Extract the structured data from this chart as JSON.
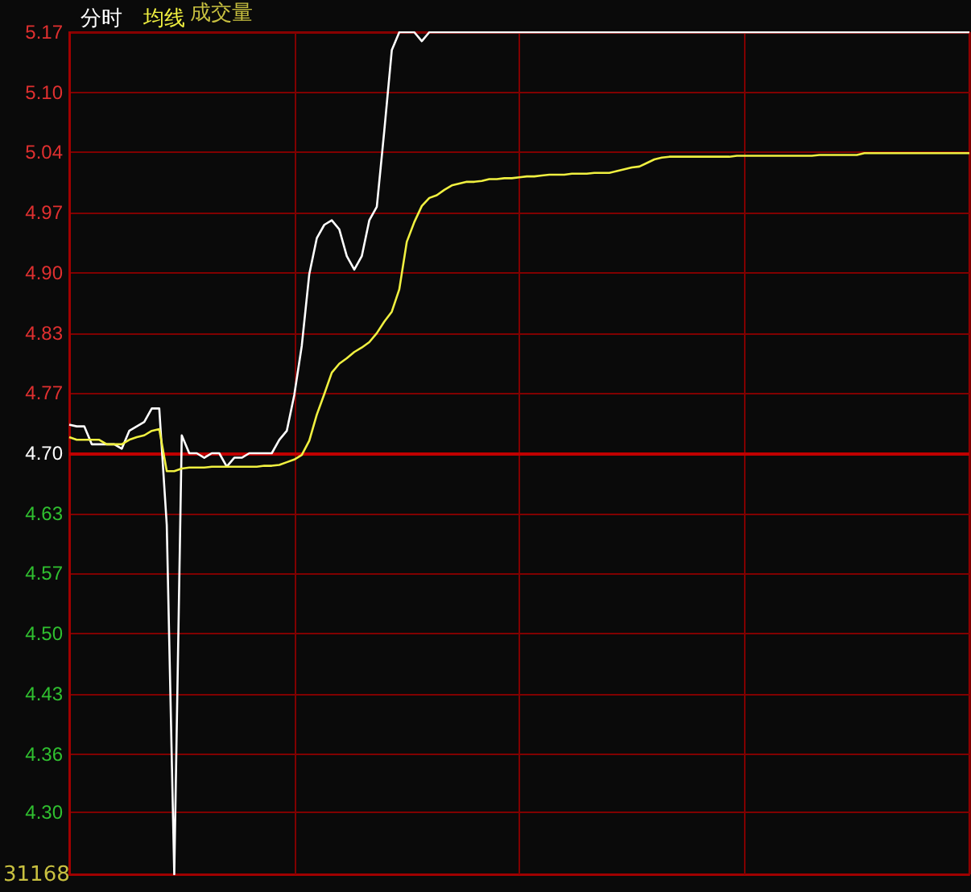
{
  "chart_data": {
    "type": "line",
    "categories": [
      null,
      null,
      null,
      null,
      null,
      null,
      null,
      null,
      null,
      null,
      null,
      null,
      null,
      null,
      null,
      null,
      null,
      null,
      null,
      null,
      null,
      null,
      null,
      null,
      null,
      null,
      null,
      null,
      null,
      null,
      null,
      null,
      null,
      null,
      null,
      null,
      null,
      null,
      null,
      null,
      null,
      null,
      null,
      null,
      null,
      null,
      null,
      null,
      null,
      null,
      null,
      null,
      null,
      null,
      null,
      null,
      null,
      null,
      null,
      null,
      null,
      null,
      null,
      null,
      null,
      null,
      null,
      null,
      null,
      null,
      null,
      null,
      null,
      null,
      null,
      null,
      null,
      null,
      null,
      null,
      null,
      null,
      null,
      null,
      null,
      null,
      null,
      null,
      null,
      null,
      null,
      null,
      null,
      null,
      null,
      null,
      null,
      null,
      null,
      null,
      null,
      null,
      null,
      null,
      null,
      null,
      null,
      null,
      null,
      null,
      null,
      null,
      null,
      null,
      null,
      null,
      null,
      null,
      null,
      null,
      null
    ],
    "series": [
      {
        "name": "分时",
        "color": "#ffffff",
        "values": [
          4.732,
          4.73,
          4.73,
          4.71,
          4.71,
          4.71,
          4.71,
          4.705,
          4.725,
          4.73,
          4.735,
          4.75,
          4.75,
          4.62,
          4.23,
          4.72,
          4.7,
          4.7,
          4.695,
          4.7,
          4.7,
          4.685,
          4.695,
          4.695,
          4.7,
          4.7,
          4.7,
          4.7,
          4.715,
          4.725,
          4.765,
          4.82,
          4.9,
          4.94,
          4.955,
          4.96,
          4.95,
          4.92,
          4.905,
          4.92,
          4.96,
          4.975,
          5.06,
          5.15,
          5.17,
          5.17,
          5.17,
          5.16,
          5.17,
          5.17,
          5.17,
          5.17,
          5.17,
          5.17,
          5.17,
          5.17,
          5.17,
          5.17,
          5.17,
          5.17,
          5.17,
          5.17,
          5.17,
          5.17,
          5.17,
          5.17,
          5.17,
          5.17,
          5.17,
          5.17,
          5.17,
          5.17,
          5.17,
          5.17,
          5.17,
          5.17,
          5.17,
          5.17,
          5.17,
          5.17,
          5.17,
          5.17,
          5.17,
          5.17,
          5.17,
          5.17,
          5.17,
          5.17,
          5.17,
          5.17,
          5.17,
          5.17,
          5.17,
          5.17,
          5.17,
          5.17,
          5.17,
          5.17,
          5.17,
          5.17,
          5.17,
          5.17,
          5.17,
          5.17,
          5.17,
          5.17,
          5.17,
          5.17,
          5.17,
          5.17,
          5.17,
          5.17,
          5.17,
          5.17,
          5.17,
          5.17,
          5.17,
          5.17,
          5.17,
          5.17,
          5.17
        ]
      },
      {
        "name": "均线",
        "color": "#f0f040",
        "values": [
          4.718,
          4.715,
          4.715,
          4.715,
          4.715,
          4.71,
          4.71,
          4.71,
          4.715,
          4.718,
          4.72,
          4.725,
          4.727,
          4.68,
          4.68,
          4.683,
          4.684,
          4.684,
          4.684,
          4.685,
          4.685,
          4.685,
          4.685,
          4.685,
          4.685,
          4.685,
          4.686,
          4.686,
          4.687,
          4.69,
          4.693,
          4.698,
          4.714,
          4.743,
          4.766,
          4.79,
          4.8,
          4.806,
          4.813,
          4.818,
          4.824,
          4.834,
          4.847,
          4.858,
          4.883,
          4.936,
          4.958,
          4.976,
          4.985,
          4.988,
          4.994,
          4.999,
          5.001,
          5.003,
          5.003,
          5.004,
          5.006,
          5.006,
          5.007,
          5.007,
          5.008,
          5.009,
          5.009,
          5.01,
          5.011,
          5.011,
          5.011,
          5.012,
          5.012,
          5.012,
          5.013,
          5.013,
          5.013,
          5.015,
          5.017,
          5.019,
          5.02,
          5.024,
          5.028,
          5.03,
          5.031,
          5.031,
          5.031,
          5.031,
          5.031,
          5.031,
          5.031,
          5.031,
          5.031,
          5.032,
          5.032,
          5.032,
          5.032,
          5.032,
          5.032,
          5.032,
          5.032,
          5.032,
          5.032,
          5.032,
          5.033,
          5.033,
          5.033,
          5.033,
          5.033,
          5.033,
          5.035,
          5.035,
          5.035,
          5.035,
          5.035,
          5.035,
          5.035,
          5.035,
          5.035,
          5.035,
          5.035,
          5.035,
          5.035,
          5.035,
          5.035
        ]
      }
    ],
    "ylim": [
      4.23,
      5.17
    ],
    "yticks": [
      5.17,
      {
        "value": 5.103,
        "label": "5.10"
      },
      {
        "value": 5.036,
        "label": "5.04"
      },
      {
        "value": 4.969,
        "label": "4.97"
      },
      {
        "value": 4.901,
        "label": "4.90"
      },
      {
        "value": 4.834,
        "label": "4.83"
      },
      {
        "value": 4.767,
        "label": "4.77"
      },
      {
        "value": 4.7,
        "label": "4.70"
      },
      {
        "value": 4.633,
        "label": "4.63"
      },
      {
        "value": 4.566,
        "label": "4.57"
      },
      {
        "value": 4.499,
        "label": "4.50"
      },
      {
        "value": 4.431,
        "label": "4.43"
      },
      {
        "value": 4.364,
        "label": "4.36"
      },
      {
        "value": 4.299,
        "label": "4.30"
      },
      {
        "value": 4.23,
        "label": null
      }
    ],
    "ref_lines": [
      {
        "axis": "y",
        "value": 4.7,
        "color": "#c00000"
      }
    ],
    "annotations": [
      "成交量",
      "31168"
    ],
    "grid": true,
    "legend": "top left",
    "tick_labels": "y",
    "line_style": "solid"
  }
}
